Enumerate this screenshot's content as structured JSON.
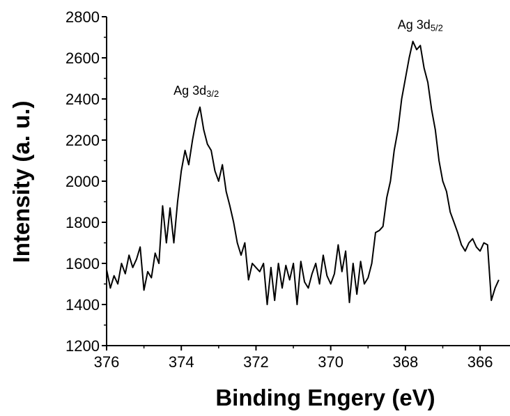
{
  "chart_data": {
    "type": "line",
    "title": "",
    "xlabel": "Binding Engery (eV)",
    "ylabel": "Intensity (a. u.)",
    "xlim": [
      376,
      365.2
    ],
    "ylim": [
      1200,
      2800
    ],
    "x_reversed": true,
    "grid": false,
    "legend": "none",
    "xticks": [
      376,
      374,
      372,
      370,
      368,
      366
    ],
    "yticks": [
      1200,
      1400,
      1600,
      1800,
      2000,
      2200,
      2400,
      2600,
      2800
    ],
    "annotations": [
      {
        "text": "Ag 3d",
        "sub": "3/2",
        "x": 373.6,
        "y": 2420
      },
      {
        "text": "Ag 3d",
        "sub": "5/2",
        "x": 367.6,
        "y": 2740
      }
    ],
    "series": [
      {
        "color": "#000000",
        "x": [
          376.0,
          375.9,
          375.8,
          375.7,
          375.6,
          375.5,
          375.4,
          375.3,
          375.2,
          375.1,
          375.0,
          374.9,
          374.8,
          374.7,
          374.6,
          374.5,
          374.4,
          374.3,
          374.2,
          374.1,
          374.0,
          373.9,
          373.8,
          373.7,
          373.6,
          373.5,
          373.4,
          373.3,
          373.2,
          373.1,
          373.0,
          372.9,
          372.8,
          372.7,
          372.6,
          372.5,
          372.4,
          372.3,
          372.2,
          372.1,
          372.0,
          371.9,
          371.8,
          371.7,
          371.6,
          371.5,
          371.4,
          371.3,
          371.2,
          371.1,
          371.0,
          370.9,
          370.8,
          370.7,
          370.6,
          370.5,
          370.4,
          370.3,
          370.2,
          370.1,
          370.0,
          369.9,
          369.8,
          369.7,
          369.6,
          369.5,
          369.4,
          369.3,
          369.2,
          369.1,
          369.0,
          368.9,
          368.8,
          368.7,
          368.6,
          368.5,
          368.4,
          368.3,
          368.2,
          368.1,
          368.0,
          367.9,
          367.8,
          367.7,
          367.6,
          367.5,
          367.4,
          367.3,
          367.2,
          367.1,
          367.0,
          366.9,
          366.8,
          366.7,
          366.6,
          366.5,
          366.4,
          366.3,
          366.2,
          366.1,
          366.0,
          365.9,
          365.8,
          365.7,
          365.6,
          365.5
        ],
        "y": [
          1570,
          1480,
          1540,
          1500,
          1600,
          1550,
          1640,
          1580,
          1620,
          1680,
          1470,
          1560,
          1530,
          1650,
          1600,
          1880,
          1700,
          1870,
          1700,
          1900,
          2050,
          2150,
          2080,
          2200,
          2300,
          2360,
          2250,
          2180,
          2150,
          2050,
          2000,
          2080,
          1950,
          1880,
          1800,
          1700,
          1640,
          1700,
          1520,
          1600,
          1580,
          1560,
          1600,
          1400,
          1580,
          1420,
          1600,
          1480,
          1590,
          1520,
          1600,
          1400,
          1610,
          1510,
          1480,
          1550,
          1600,
          1500,
          1640,
          1540,
          1500,
          1550,
          1690,
          1560,
          1660,
          1410,
          1600,
          1450,
          1610,
          1500,
          1530,
          1600,
          1750,
          1760,
          1780,
          1920,
          2000,
          2150,
          2250,
          2400,
          2500,
          2600,
          2680,
          2640,
          2660,
          2550,
          2480,
          2350,
          2250,
          2100,
          2000,
          1950,
          1850,
          1800,
          1750,
          1690,
          1660,
          1700,
          1720,
          1680,
          1660,
          1700,
          1690,
          1420,
          1480,
          1520
        ]
      }
    ]
  }
}
